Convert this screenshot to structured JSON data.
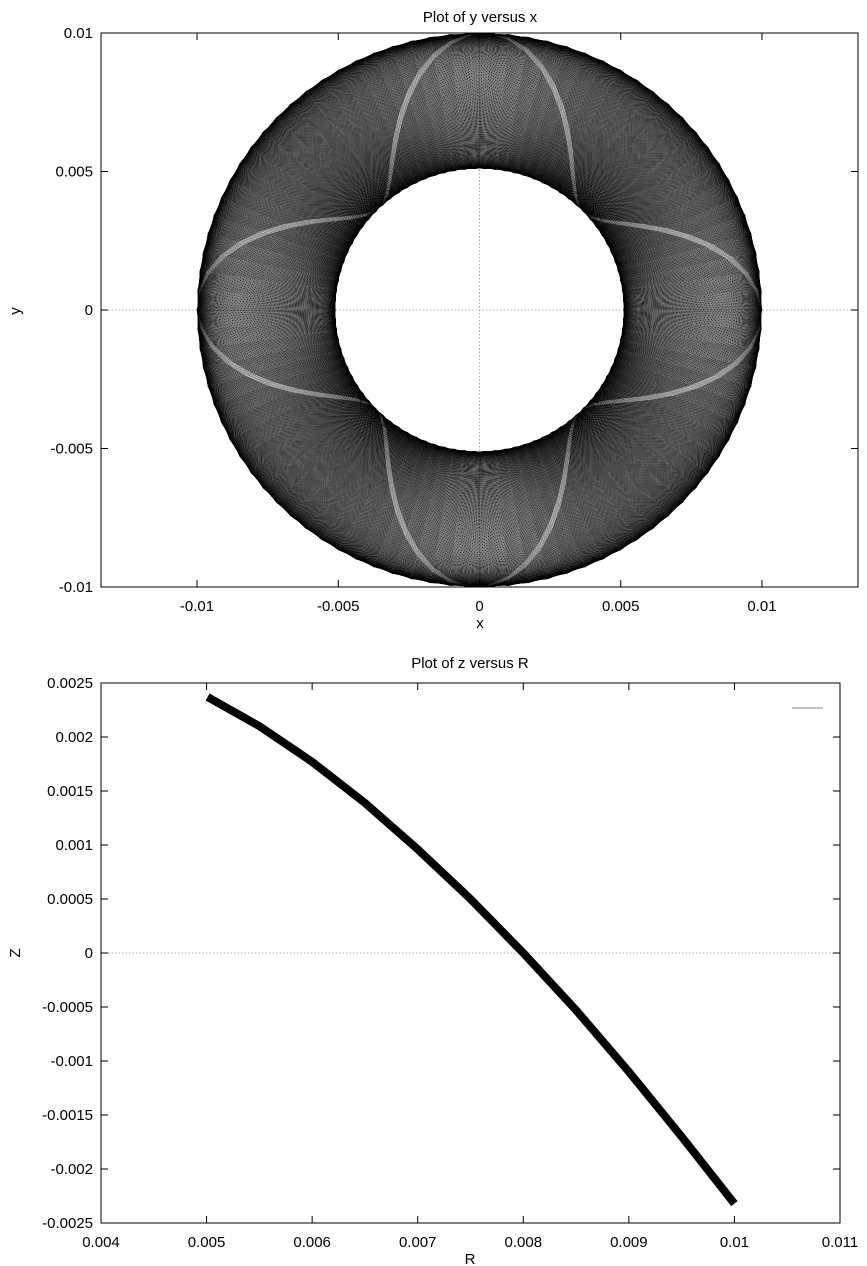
{
  "chart_data": [
    {
      "type": "line",
      "title": "Plot of y versus x",
      "xlabel": "x",
      "ylabel": "y",
      "xlim": [
        -0.0134,
        0.0134
      ],
      "ylim": [
        -0.01,
        0.01
      ],
      "xticks": [
        -0.01,
        -0.005,
        0,
        0.005,
        0.01
      ],
      "xtick_labels": [
        "-0.01",
        "-0.005",
        "0",
        "0.005",
        "0.01"
      ],
      "yticks": [
        -0.01,
        -0.005,
        0,
        0.005,
        0.01
      ],
      "ytick_labels": [
        "-0.01",
        "-0.005",
        "0",
        "0.005",
        "0.01"
      ],
      "zero_axes": true,
      "grid": false,
      "curve": {
        "description_units": "data",
        "outer_radius": 0.01,
        "inner_radius": 0.0051,
        "lobes": 4,
        "loops": 260,
        "precession_cycles": 0.98,
        "color": "#000000"
      }
    },
    {
      "type": "line",
      "title": "Plot of z versus R",
      "xlabel": "R",
      "ylabel": "Z",
      "xlim": [
        0.004,
        0.011
      ],
      "ylim": [
        -0.0025,
        0.0025
      ],
      "xticks": [
        0.004,
        0.005,
        0.006,
        0.007,
        0.008,
        0.009,
        0.01,
        0.011
      ],
      "xtick_labels": [
        "0.004",
        "0.005",
        "0.006",
        "0.007",
        "0.008",
        "0.009",
        "0.01",
        "0.011"
      ],
      "yticks": [
        -0.0025,
        -0.002,
        -0.0015,
        -0.001,
        -0.0005,
        0,
        0.0005,
        0.001,
        0.0015,
        0.002,
        0.0025
      ],
      "ytick_labels": [
        "-0.0025",
        "-0.002",
        "-0.0015",
        "-0.001",
        "-0.0005",
        "0",
        "0.0005",
        "0.001",
        "0.0015",
        "0.002",
        "0.0025"
      ],
      "zero_axes": true,
      "grid": false,
      "legend": "top-right",
      "series": [
        {
          "x": [
            0.00501,
            0.0055,
            0.006,
            0.0065,
            0.007,
            0.0075,
            0.008,
            0.0085,
            0.009,
            0.0095,
            0.01
          ],
          "y": [
            0.00237,
            0.0021,
            0.00177,
            0.00139,
            0.00096,
            0.0005,
            0.0,
            -0.00053,
            -0.0011,
            -0.0017,
            -0.00232
          ],
          "color": "#000000"
        }
      ]
    }
  ]
}
